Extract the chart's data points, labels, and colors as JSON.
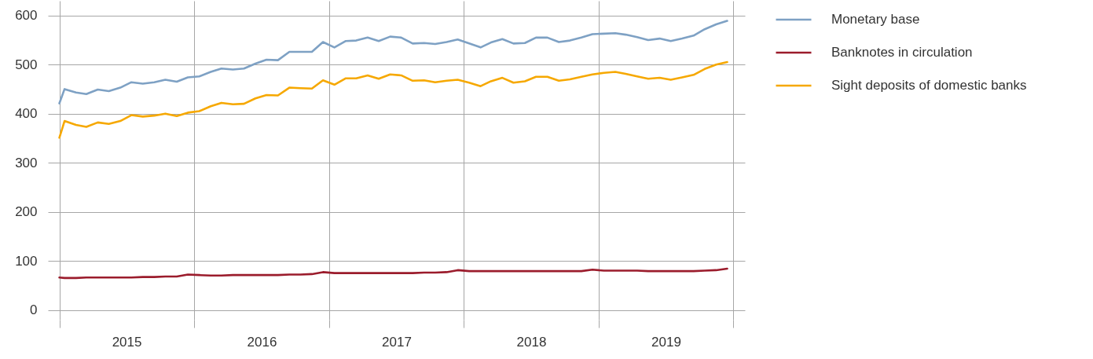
{
  "chart_data": {
    "type": "line",
    "x": [
      "2015-01-01",
      "2015-01-15",
      "2015-02-15",
      "2015-03-15",
      "2015-04-15",
      "2015-05-15",
      "2015-06-15",
      "2015-07-15",
      "2015-08-15",
      "2015-09-15",
      "2015-10-15",
      "2015-11-15",
      "2015-12-15",
      "2016-01-15",
      "2016-02-15",
      "2016-03-15",
      "2016-04-15",
      "2016-05-15",
      "2016-06-15",
      "2016-07-15",
      "2016-08-15",
      "2016-09-15",
      "2016-10-15",
      "2016-11-15",
      "2016-12-15",
      "2017-01-15",
      "2017-02-15",
      "2017-03-15",
      "2017-04-15",
      "2017-05-15",
      "2017-06-15",
      "2017-07-15",
      "2017-08-15",
      "2017-09-15",
      "2017-10-15",
      "2017-11-15",
      "2017-12-15",
      "2018-01-15",
      "2018-02-15",
      "2018-03-15",
      "2018-04-15",
      "2018-05-15",
      "2018-06-15",
      "2018-07-15",
      "2018-08-15",
      "2018-09-15",
      "2018-10-15",
      "2018-11-15",
      "2018-12-15",
      "2019-01-15",
      "2019-02-15",
      "2019-03-15",
      "2019-04-15",
      "2019-05-15",
      "2019-06-15",
      "2019-07-15",
      "2019-08-15",
      "2019-09-15",
      "2019-10-15",
      "2019-11-15",
      "2019-12-15"
    ],
    "series": [
      {
        "name": "Monetary base",
        "color": "#7ea1c4",
        "values": [
          421,
          450,
          443,
          440,
          449,
          446,
          453,
          464,
          461,
          464,
          469,
          465,
          474,
          476,
          485,
          492,
          490,
          492,
          502,
          510,
          509,
          526,
          526,
          526,
          546,
          535,
          548,
          549,
          555,
          548,
          557,
          555,
          543,
          544,
          542,
          546,
          551,
          543,
          535,
          545,
          552,
          543,
          544,
          555,
          555,
          546,
          549,
          555,
          562,
          563,
          564,
          561,
          556,
          550,
          553,
          548,
          553,
          559,
          572,
          582,
          589
        ]
      },
      {
        "name": "Banknotes in circulation",
        "color": "#9b1c2c",
        "values": [
          66,
          65,
          65,
          66,
          66,
          66,
          66,
          66,
          67,
          67,
          68,
          68,
          72,
          71,
          70,
          70,
          71,
          71,
          71,
          71,
          71,
          72,
          72,
          73,
          77,
          75,
          75,
          75,
          75,
          75,
          75,
          75,
          75,
          76,
          76,
          77,
          81,
          79,
          79,
          79,
          79,
          79,
          79,
          79,
          79,
          79,
          79,
          79,
          82,
          80,
          80,
          80,
          80,
          79,
          79,
          79,
          79,
          79,
          80,
          81,
          84
        ]
      },
      {
        "name": "Sight deposits of domestic banks",
        "color": "#f6a800",
        "values": [
          351,
          385,
          377,
          373,
          382,
          379,
          385,
          397,
          394,
          396,
          400,
          395,
          402,
          405,
          415,
          422,
          419,
          420,
          431,
          438,
          437,
          453,
          452,
          451,
          468,
          459,
          472,
          472,
          478,
          471,
          480,
          478,
          467,
          468,
          464,
          467,
          469,
          463,
          456,
          466,
          473,
          463,
          466,
          475,
          475,
          467,
          470,
          475,
          480,
          483,
          485,
          481,
          476,
          471,
          473,
          469,
          474,
          479,
          491,
          500,
          505
        ]
      }
    ],
    "xlim": [
      "2014-12-01",
      "2020-02-01"
    ],
    "xticks": [
      {
        "value": "2015-01-01",
        "label": null
      },
      {
        "value": "2015-07-02",
        "label": "2015"
      },
      {
        "value": "2016-01-01",
        "label": null
      },
      {
        "value": "2016-07-02",
        "label": "2016"
      },
      {
        "value": "2017-01-01",
        "label": null
      },
      {
        "value": "2017-07-02",
        "label": "2017"
      },
      {
        "value": "2018-01-01",
        "label": null
      },
      {
        "value": "2018-07-02",
        "label": "2018"
      },
      {
        "value": "2019-01-01",
        "label": null
      },
      {
        "value": "2019-07-02",
        "label": "2019"
      },
      {
        "value": "2020-01-01",
        "label": null
      }
    ],
    "ylim": [
      -20,
      630
    ],
    "yticks": [
      0,
      100,
      200,
      300,
      400,
      500,
      600
    ],
    "grid": true,
    "legend": "top right"
  }
}
